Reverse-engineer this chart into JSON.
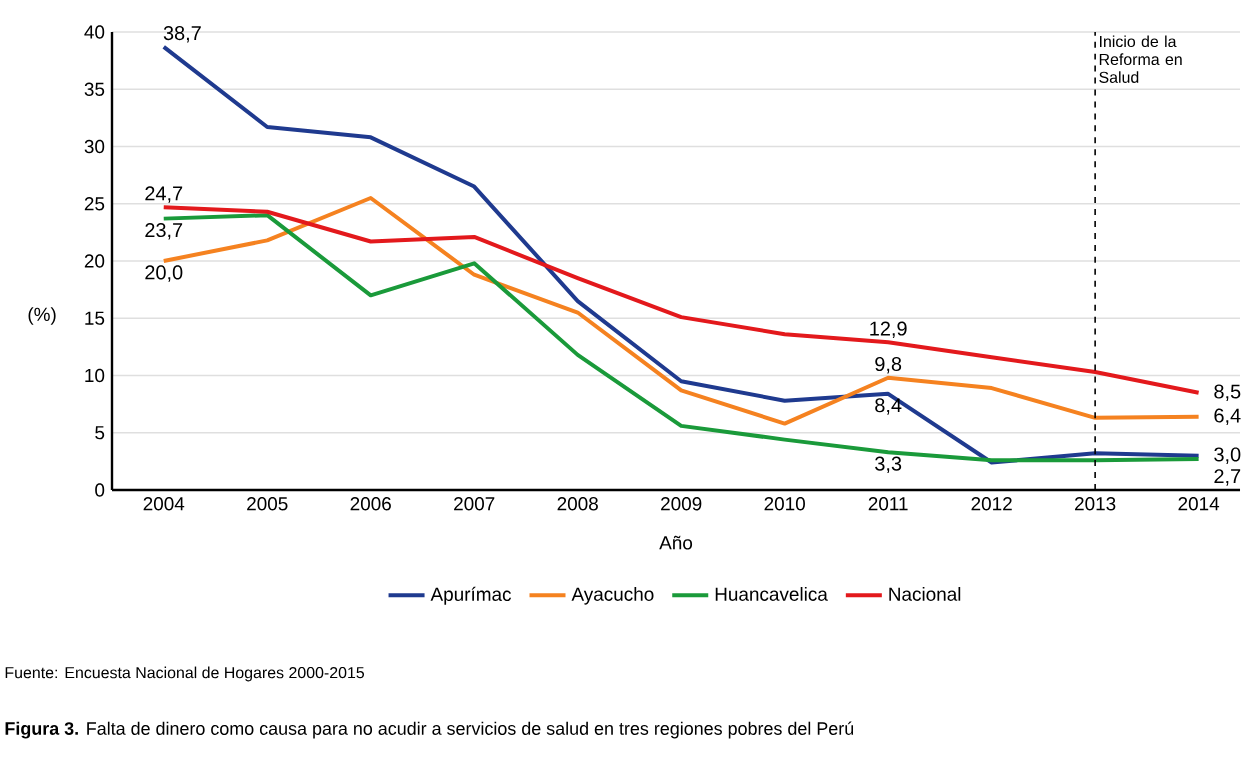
{
  "chart_data": {
    "type": "line",
    "xlabel": "Año",
    "ylabel": "(%)",
    "x": [
      2004,
      2005,
      2006,
      2007,
      2008,
      2009,
      2010,
      2011,
      2012,
      2013,
      2014
    ],
    "xlim": [
      2003.5,
      2014.4
    ],
    "ylim": [
      0,
      40
    ],
    "xticks": [
      2004,
      2005,
      2006,
      2007,
      2008,
      2009,
      2010,
      2011,
      2012,
      2013,
      2014
    ],
    "yticks": [
      0,
      5,
      10,
      15,
      20,
      25,
      30,
      35,
      40
    ],
    "grid": "y",
    "legend": "bottom",
    "marker": "none",
    "line_style": "solid",
    "series": [
      {
        "name": "Apurímac",
        "color": "#1f3a8f",
        "values": [
          38.7,
          31.7,
          30.8,
          26.5,
          16.5,
          9.5,
          7.8,
          8.4,
          2.4,
          3.2,
          3.0
        ],
        "value_labels": [
          "38,7",
          null,
          null,
          null,
          null,
          null,
          null,
          "8,4",
          null,
          null,
          "3,0"
        ]
      },
      {
        "name": "Ayacucho",
        "color": "#f58220",
        "values": [
          20.0,
          21.8,
          25.5,
          18.8,
          15.5,
          8.7,
          5.8,
          9.8,
          8.9,
          6.3,
          6.4
        ],
        "value_labels": [
          "20,0",
          null,
          null,
          null,
          null,
          null,
          null,
          "9,8",
          null,
          null,
          "6,4"
        ]
      },
      {
        "name": "Huancavelica",
        "color": "#1a9a3a",
        "values": [
          23.7,
          24.0,
          17.0,
          19.8,
          11.8,
          5.6,
          4.4,
          3.3,
          2.6,
          2.6,
          2.7
        ],
        "value_labels": [
          "23,7",
          null,
          null,
          null,
          null,
          null,
          null,
          "3,3",
          null,
          null,
          "2,7"
        ]
      },
      {
        "name": "Nacional",
        "color": "#e3191c",
        "values": [
          24.7,
          24.3,
          21.7,
          22.1,
          18.5,
          15.1,
          13.6,
          12.9,
          11.6,
          10.3,
          8.5
        ],
        "value_labels": [
          "24,7",
          null,
          null,
          null,
          null,
          null,
          null,
          "12,9",
          null,
          null,
          "8,5"
        ]
      }
    ],
    "ref_lines": [
      {
        "axis": "x",
        "value": 2013,
        "label": "Inicio de la Reforma en Salud",
        "color": "#000000",
        "line_style": "dashed"
      }
    ],
    "annotations": [
      "Fuente: Encuesta Nacional de Hogares 2000-2015",
      "**Figura 3.** Falta de dinero como causa para no acudir a servicios de salud en tres regiones pobres del Perú"
    ]
  }
}
